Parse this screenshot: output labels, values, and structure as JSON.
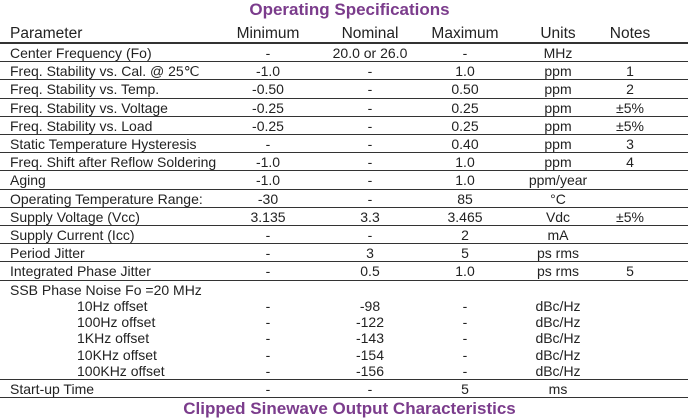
{
  "title": "Operating Specifications",
  "next_title": "Clipped Sinewave Output Characteristics",
  "headers": [
    "Parameter",
    "Minimum",
    "Nominal",
    "Maximum",
    "Units",
    "Notes"
  ],
  "rows": [
    [
      "Center Frequency (Fo)",
      "-",
      "20.0 or 26.0",
      "-",
      "MHz",
      ""
    ],
    [
      "Freq. Stability vs. Cal. @ 25℃",
      "-1.0",
      "-",
      "1.0",
      "ppm",
      "1"
    ],
    [
      "Freq. Stability vs. Temp.",
      "-0.50",
      "-",
      "0.50",
      "ppm",
      "2"
    ],
    [
      "Freq. Stability vs. Voltage",
      "-0.25",
      "-",
      "0.25",
      "ppm",
      "±5%"
    ],
    [
      "Freq. Stability vs. Load",
      "-0.25",
      "-",
      "0.25",
      "ppm",
      "±5%"
    ],
    [
      "Static Temperature Hysteresis",
      "-",
      "-",
      "0.40",
      "ppm",
      "3"
    ],
    [
      "Freq. Shift after Reflow Soldering",
      "-1.0",
      "-",
      "1.0",
      "ppm",
      "4"
    ],
    [
      "Aging",
      "-1.0",
      "-",
      "1.0",
      "ppm/year",
      ""
    ],
    [
      "Operating Temperature Range:",
      "-30",
      "-",
      "85",
      "°C",
      ""
    ],
    [
      "Supply Voltage (Vcc)",
      "3.135",
      "3.3",
      "3.465",
      "Vdc",
      "±5%"
    ],
    [
      "Supply Current (Icc)",
      "-",
      "-",
      "2",
      "mA",
      ""
    ],
    [
      "Period Jitter",
      "-",
      "3",
      "5",
      "ps rms",
      ""
    ],
    [
      "Integrated Phase Jitter",
      "-",
      "0.5",
      "1.0",
      "ps rms",
      "5"
    ],
    [
      "SSB Phase Noise Fo =20 MHz",
      "",
      "",
      "",
      "",
      ""
    ],
    [
      "10Hz offset",
      "-",
      "-98",
      "-",
      "dBc/Hz",
      ""
    ],
    [
      "100Hz offset",
      "-",
      "-122",
      "-",
      "dBc/Hz",
      ""
    ],
    [
      "1KHz offset",
      "-",
      "-143",
      "-",
      "dBc/Hz",
      ""
    ],
    [
      "10KHz offset",
      "-",
      "-154",
      "-",
      "dBc/Hz",
      ""
    ],
    [
      "100KHz offset",
      "-",
      "-156",
      "-",
      "dBc/Hz",
      ""
    ],
    [
      "Start-up Time",
      "-",
      "-",
      "5",
      "ms",
      ""
    ]
  ]
}
